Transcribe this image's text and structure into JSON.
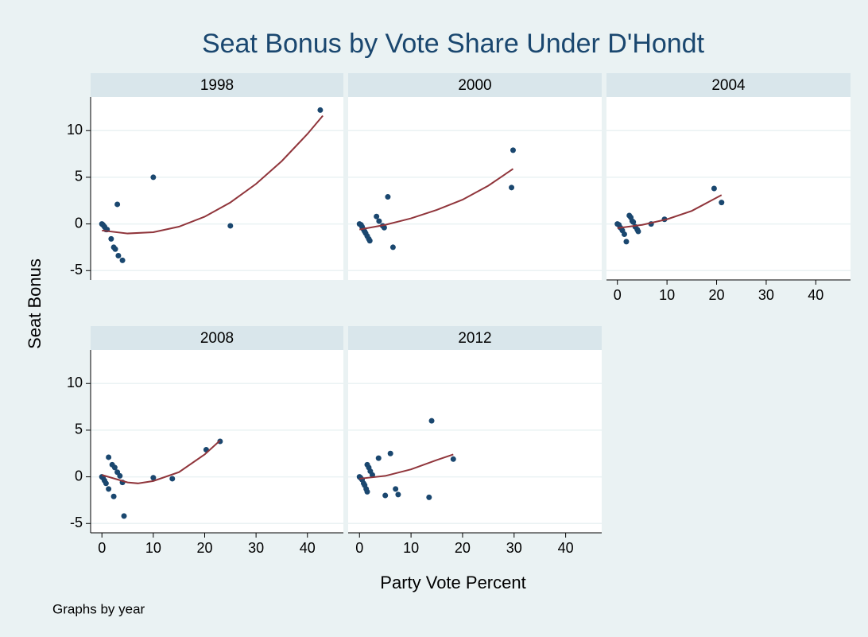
{
  "title": "Seat Bonus by Vote Share Under D'Hondt",
  "ylabel": "Seat Bonus",
  "xlabel": "Party Vote Percent",
  "note": "Graphs by year",
  "chart_data": [
    {
      "type": "scatter",
      "title": "1998",
      "xlim": [
        -2.2,
        47
      ],
      "ylim": [
        -6,
        13.6
      ],
      "yticks": [
        -5,
        0,
        5,
        10
      ],
      "x_axis": false,
      "y_axis": true,
      "series": [
        {
          "color": "#1a476f",
          "x": [
            0,
            0.2,
            0.5,
            0.8,
            1,
            1.8,
            2.3,
            2.6,
            3.2,
            4,
            3,
            10,
            25,
            42.5
          ],
          "values": [
            0,
            -0.1,
            -0.3,
            -0.6,
            -0.6,
            -1.6,
            -2.5,
            -2.7,
            -3.4,
            -3.9,
            2.1,
            5,
            -0.2,
            12.2
          ]
        },
        {
          "type": "line",
          "color": "#90353b",
          "x": [
            0,
            5,
            10,
            15,
            20,
            25,
            30,
            35,
            40,
            43
          ],
          "values": [
            -0.7,
            -1.02,
            -0.89,
            -0.29,
            0.78,
            2.3,
            4.29,
            6.73,
            9.64,
            11.6
          ]
        }
      ]
    },
    {
      "type": "scatter",
      "title": "2000",
      "xlim": [
        -2.2,
        47
      ],
      "ylim": [
        -6,
        13.6
      ],
      "yticks": [
        -5,
        0,
        5,
        10
      ],
      "x_axis": false,
      "y_axis": false,
      "series": [
        {
          "color": "#1a476f",
          "x": [
            0,
            0.3,
            0.5,
            0.8,
            1,
            1.2,
            1.5,
            1.8,
            2,
            3.3,
            3.8,
            4.5,
            4.8,
            5.5,
            6.5,
            29.5,
            29.8
          ],
          "values": [
            0,
            -0.1,
            -0.3,
            -0.6,
            -0.8,
            -1,
            -1.3,
            -1.6,
            -1.8,
            0.8,
            0.3,
            -0.2,
            -0.4,
            2.9,
            -2.5,
            3.9,
            7.9
          ]
        },
        {
          "type": "line",
          "color": "#90353b",
          "x": [
            0,
            5,
            10,
            15,
            20,
            25,
            29.8
          ],
          "values": [
            -0.6,
            -0.1,
            0.6,
            1.5,
            2.6,
            4.1,
            5.9
          ]
        }
      ]
    },
    {
      "type": "scatter",
      "title": "2004",
      "xlim": [
        -2.2,
        47
      ],
      "ylim": [
        -6,
        13.6
      ],
      "yticks": [
        -5,
        0,
        5,
        10
      ],
      "xticks": [
        0,
        10,
        20,
        30,
        40
      ],
      "x_axis": true,
      "y_axis": false,
      "series": [
        {
          "color": "#1a476f",
          "x": [
            0,
            0.3,
            0.6,
            1,
            1.4,
            1.8,
            2.4,
            2.7,
            3,
            3.2,
            3.6,
            4,
            4.2,
            6.8,
            9.5,
            19.5,
            21
          ],
          "values": [
            0,
            -0.1,
            -0.4,
            -0.7,
            -1.1,
            -1.9,
            0.9,
            0.7,
            0.3,
            0.2,
            -0.3,
            -0.6,
            -0.8,
            0,
            0.5,
            3.8,
            2.3
          ]
        },
        {
          "type": "line",
          "color": "#90353b",
          "x": [
            0,
            5,
            10,
            15,
            21
          ],
          "values": [
            -0.45,
            -0.1,
            0.5,
            1.4,
            3.1
          ]
        }
      ]
    },
    {
      "type": "scatter",
      "title": "2008",
      "xlim": [
        -2.2,
        47
      ],
      "ylim": [
        -6,
        13.6
      ],
      "yticks": [
        -5,
        0,
        5,
        10
      ],
      "xticks": [
        0,
        10,
        20,
        30,
        40
      ],
      "x_axis": true,
      "y_axis": true,
      "series": [
        {
          "color": "#1a476f",
          "x": [
            0,
            0.2,
            0.5,
            0.8,
            1.3,
            1.3,
            2,
            2.3,
            2.5,
            3,
            3.5,
            4,
            4.3,
            10,
            13.7,
            20.3,
            23
          ],
          "values": [
            0,
            -0.1,
            -0.4,
            -0.7,
            -1.3,
            2.1,
            1.3,
            -2.1,
            1,
            0.5,
            0.1,
            -0.6,
            -4.2,
            -0.1,
            -0.2,
            2.9,
            3.8
          ]
        },
        {
          "type": "line",
          "color": "#90353b",
          "x": [
            0,
            5,
            7,
            10,
            15,
            20,
            23
          ],
          "values": [
            0.2,
            -0.6,
            -0.7,
            -0.45,
            0.5,
            2.4,
            3.9
          ]
        }
      ]
    },
    {
      "type": "scatter",
      "title": "2012",
      "xlim": [
        -2.2,
        47
      ],
      "ylim": [
        -6,
        13.6
      ],
      "yticks": [
        -5,
        0,
        5,
        10
      ],
      "xticks": [
        0,
        10,
        20,
        30,
        40
      ],
      "x_axis": true,
      "y_axis": false,
      "series": [
        {
          "color": "#1a476f",
          "x": [
            0,
            0.2,
            0.5,
            0.8,
            1,
            1.3,
            1.5,
            1.5,
            1.8,
            2.1,
            2.5,
            3.7,
            5,
            6,
            7,
            7.5,
            13.5,
            14,
            18.2
          ],
          "values": [
            0,
            -0.1,
            -0.3,
            -0.7,
            -0.9,
            -1.3,
            -1.6,
            1.3,
            1,
            0.6,
            0.2,
            2,
            -2,
            2.5,
            -1.3,
            -1.9,
            -2.2,
            6,
            1.9
          ]
        },
        {
          "type": "line",
          "color": "#90353b",
          "x": [
            0,
            5,
            10,
            15,
            18.2
          ],
          "values": [
            -0.2,
            0.1,
            0.8,
            1.8,
            2.4
          ]
        }
      ]
    }
  ]
}
